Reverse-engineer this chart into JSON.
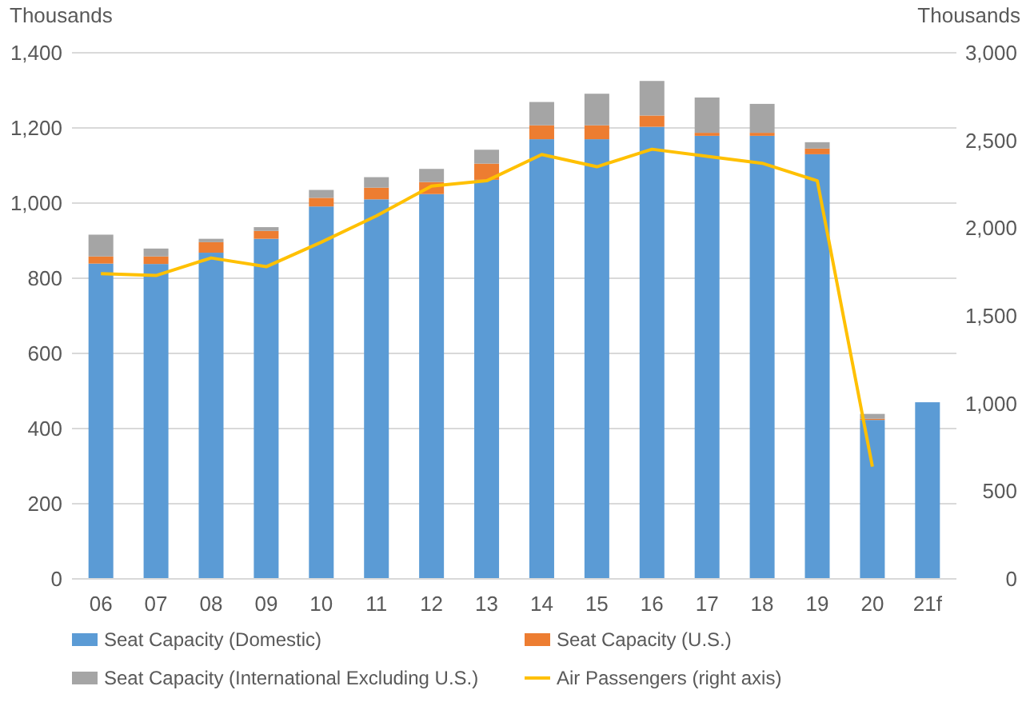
{
  "chart_data": {
    "type": "bar",
    "stacked": true,
    "ylabel": "Thousands",
    "y2label": "Thousands",
    "categories": [
      "06",
      "07",
      "08",
      "09",
      "10",
      "11",
      "12",
      "13",
      "14",
      "15",
      "16",
      "17",
      "18",
      "19",
      "20",
      "21f"
    ],
    "series": [
      {
        "name": "Seat Capacity (Domestic)",
        "color": "#5b9bd5",
        "values": [
          839,
          838,
          868,
          905,
          991,
          1010,
          1024,
          1062,
          1170,
          1170,
          1203,
          1179,
          1179,
          1130,
          423,
          470
        ]
      },
      {
        "name": "Seat Capacity (U.S.)",
        "color": "#ed7d31",
        "values": [
          19,
          20,
          28,
          21,
          23,
          31,
          32,
          43,
          37,
          37,
          30,
          8,
          8,
          15,
          3,
          null
        ]
      },
      {
        "name": "Seat Capacity (International Excluding U.S.)",
        "color": "#a5a5a5",
        "values": [
          58,
          21,
          9,
          10,
          21,
          28,
          35,
          37,
          62,
          84,
          92,
          94,
          77,
          17,
          13,
          null
        ]
      },
      {
        "name": "Air Passengers (right axis)",
        "type": "line",
        "axis": "y2",
        "color": "#ffc000",
        "values": [
          1740,
          1730,
          1830,
          1780,
          1920,
          2070,
          2240,
          2270,
          2420,
          2350,
          2450,
          2410,
          2370,
          2270,
          640,
          null
        ]
      }
    ],
    "ylim": [
      0,
      1400
    ],
    "yticks": [
      {
        "value": 0,
        "label": "0"
      },
      {
        "value": 200,
        "label": "200"
      },
      {
        "value": 400,
        "label": "400"
      },
      {
        "value": 600,
        "label": "600"
      },
      {
        "value": 800,
        "label": "800"
      },
      {
        "value": 1000,
        "label": "1,000"
      },
      {
        "value": 1200,
        "label": "1,200"
      },
      {
        "value": 1400,
        "label": "1,400"
      }
    ],
    "y2lim": [
      0,
      3000
    ],
    "y2ticks": [
      {
        "value": 0,
        "label": "0"
      },
      {
        "value": 500,
        "label": "500"
      },
      {
        "value": 1000,
        "label": "1,000"
      },
      {
        "value": 1500,
        "label": "1,500"
      },
      {
        "value": 2000,
        "label": "2,000"
      },
      {
        "value": 2500,
        "label": "2,500"
      },
      {
        "value": 3000,
        "label": "3,000"
      }
    ],
    "grid": "y",
    "legend": "bottom",
    "marker": "none",
    "line_style": "solid"
  }
}
